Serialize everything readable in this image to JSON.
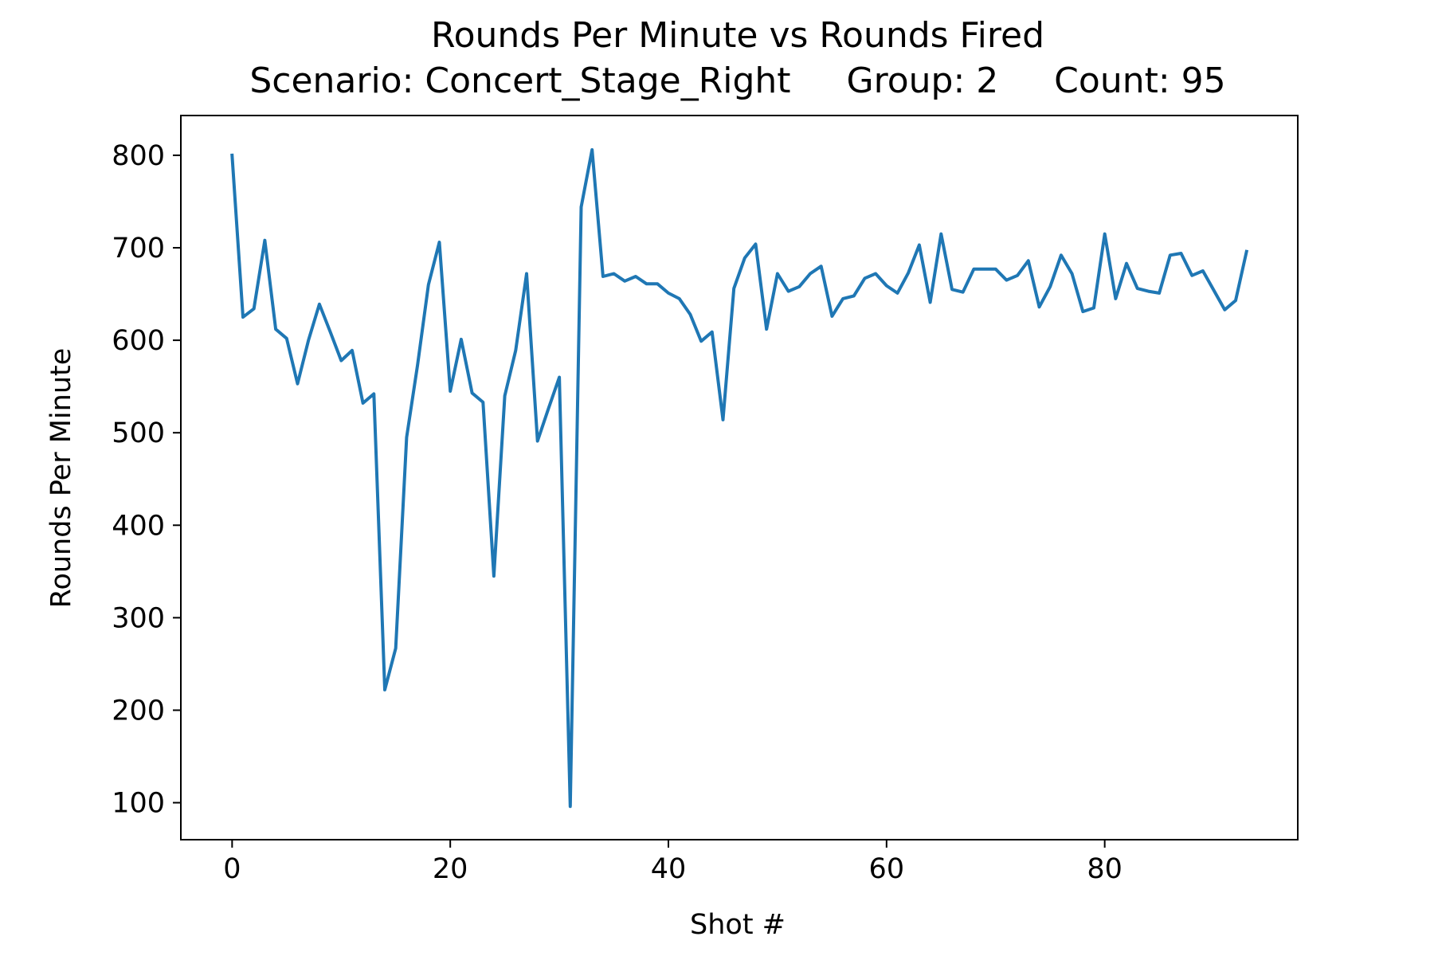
{
  "chart_data": {
    "type": "line",
    "title": "Rounds Per Minute vs Rounds Fired",
    "subtitle": "Scenario: Concert_Stage_Right     Group: 2     Count: 95",
    "xlabel": "Shot #",
    "ylabel": "Rounds Per Minute",
    "xlim": [
      -4.7,
      97.7
    ],
    "ylim": [
      60,
      843
    ],
    "xticks": [
      0,
      20,
      40,
      60,
      80
    ],
    "yticks": [
      100,
      200,
      300,
      400,
      500,
      600,
      700,
      800
    ],
    "grid": false,
    "line_color": "#1f77b4",
    "series": [
      {
        "values": [
          800,
          625,
          634,
          708,
          612,
          602,
          553,
          600,
          639,
          609,
          578,
          589,
          532,
          542,
          222,
          267,
          495,
          573,
          660,
          706,
          545,
          601,
          543,
          533,
          345,
          540,
          589,
          672,
          491,
          526,
          560,
          96,
          744,
          806,
          669,
          672,
          664,
          669,
          661,
          661,
          651,
          645,
          628,
          599,
          609,
          514,
          656,
          689,
          704,
          612,
          672,
          653,
          658,
          672,
          680,
          626,
          645,
          648,
          667,
          672,
          659,
          651,
          673,
          703,
          641,
          715,
          655,
          652,
          677,
          677,
          677,
          665,
          670,
          686,
          636,
          658,
          692,
          672,
          631,
          635,
          715,
          645,
          683,
          656,
          653,
          651,
          692,
          694,
          670,
          675,
          654,
          633,
          643,
          696
        ]
      }
    ]
  }
}
